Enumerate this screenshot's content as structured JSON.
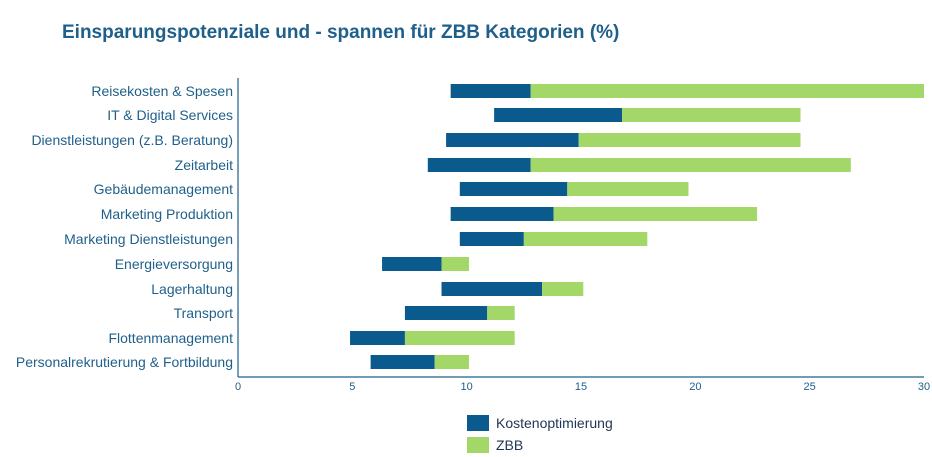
{
  "title": "Einsparungspotenziale und - spannen für ZBB Kategorien (%)",
  "colors": {
    "kostenoptimierung": "#0b5a8e",
    "zbb": "#a3d767",
    "axis": "#1f5f8b",
    "text": "#1f5f8b"
  },
  "chart_data": {
    "type": "bar",
    "orientation": "horizontal-stacked-range",
    "title": "Einsparungspotenziale und - spannen für ZBB Kategorien (%)",
    "xlim": [
      0,
      30
    ],
    "xticks": [
      "0",
      "5",
      "10",
      "15",
      "20",
      "25",
      "30"
    ],
    "grid": false,
    "legend_position": "bottom",
    "categories": [
      "Reisekosten & Spesen",
      "IT & Digital Services",
      "Dienstleistungen (z.B. Beratung)",
      "Zeitarbeit",
      "Gebäudemanagement",
      "Marketing Produktion",
      "Marketing Dienstleistungen",
      "Energieversorgung",
      "Lagerhaltung",
      "Transport",
      "Flottenmanagement",
      "Personalrekrutierung & Fortbildung"
    ],
    "series": [
      {
        "name": "Kostenoptimierung",
        "start": [
          9.3,
          11.2,
          9.1,
          8.3,
          9.7,
          9.3,
          9.7,
          6.3,
          8.9,
          7.3,
          4.9,
          5.8
        ],
        "end": [
          12.8,
          16.8,
          14.9,
          12.8,
          14.4,
          13.8,
          12.5,
          8.9,
          13.3,
          10.9,
          7.3,
          8.6
        ]
      },
      {
        "name": "ZBB",
        "start": [
          12.8,
          16.8,
          14.9,
          12.8,
          14.4,
          13.8,
          12.5,
          8.9,
          13.3,
          10.9,
          7.3,
          8.6
        ],
        "end": [
          30.0,
          24.6,
          24.6,
          26.8,
          19.7,
          22.7,
          17.9,
          10.1,
          15.1,
          12.1,
          12.1,
          10.1
        ]
      }
    ]
  }
}
